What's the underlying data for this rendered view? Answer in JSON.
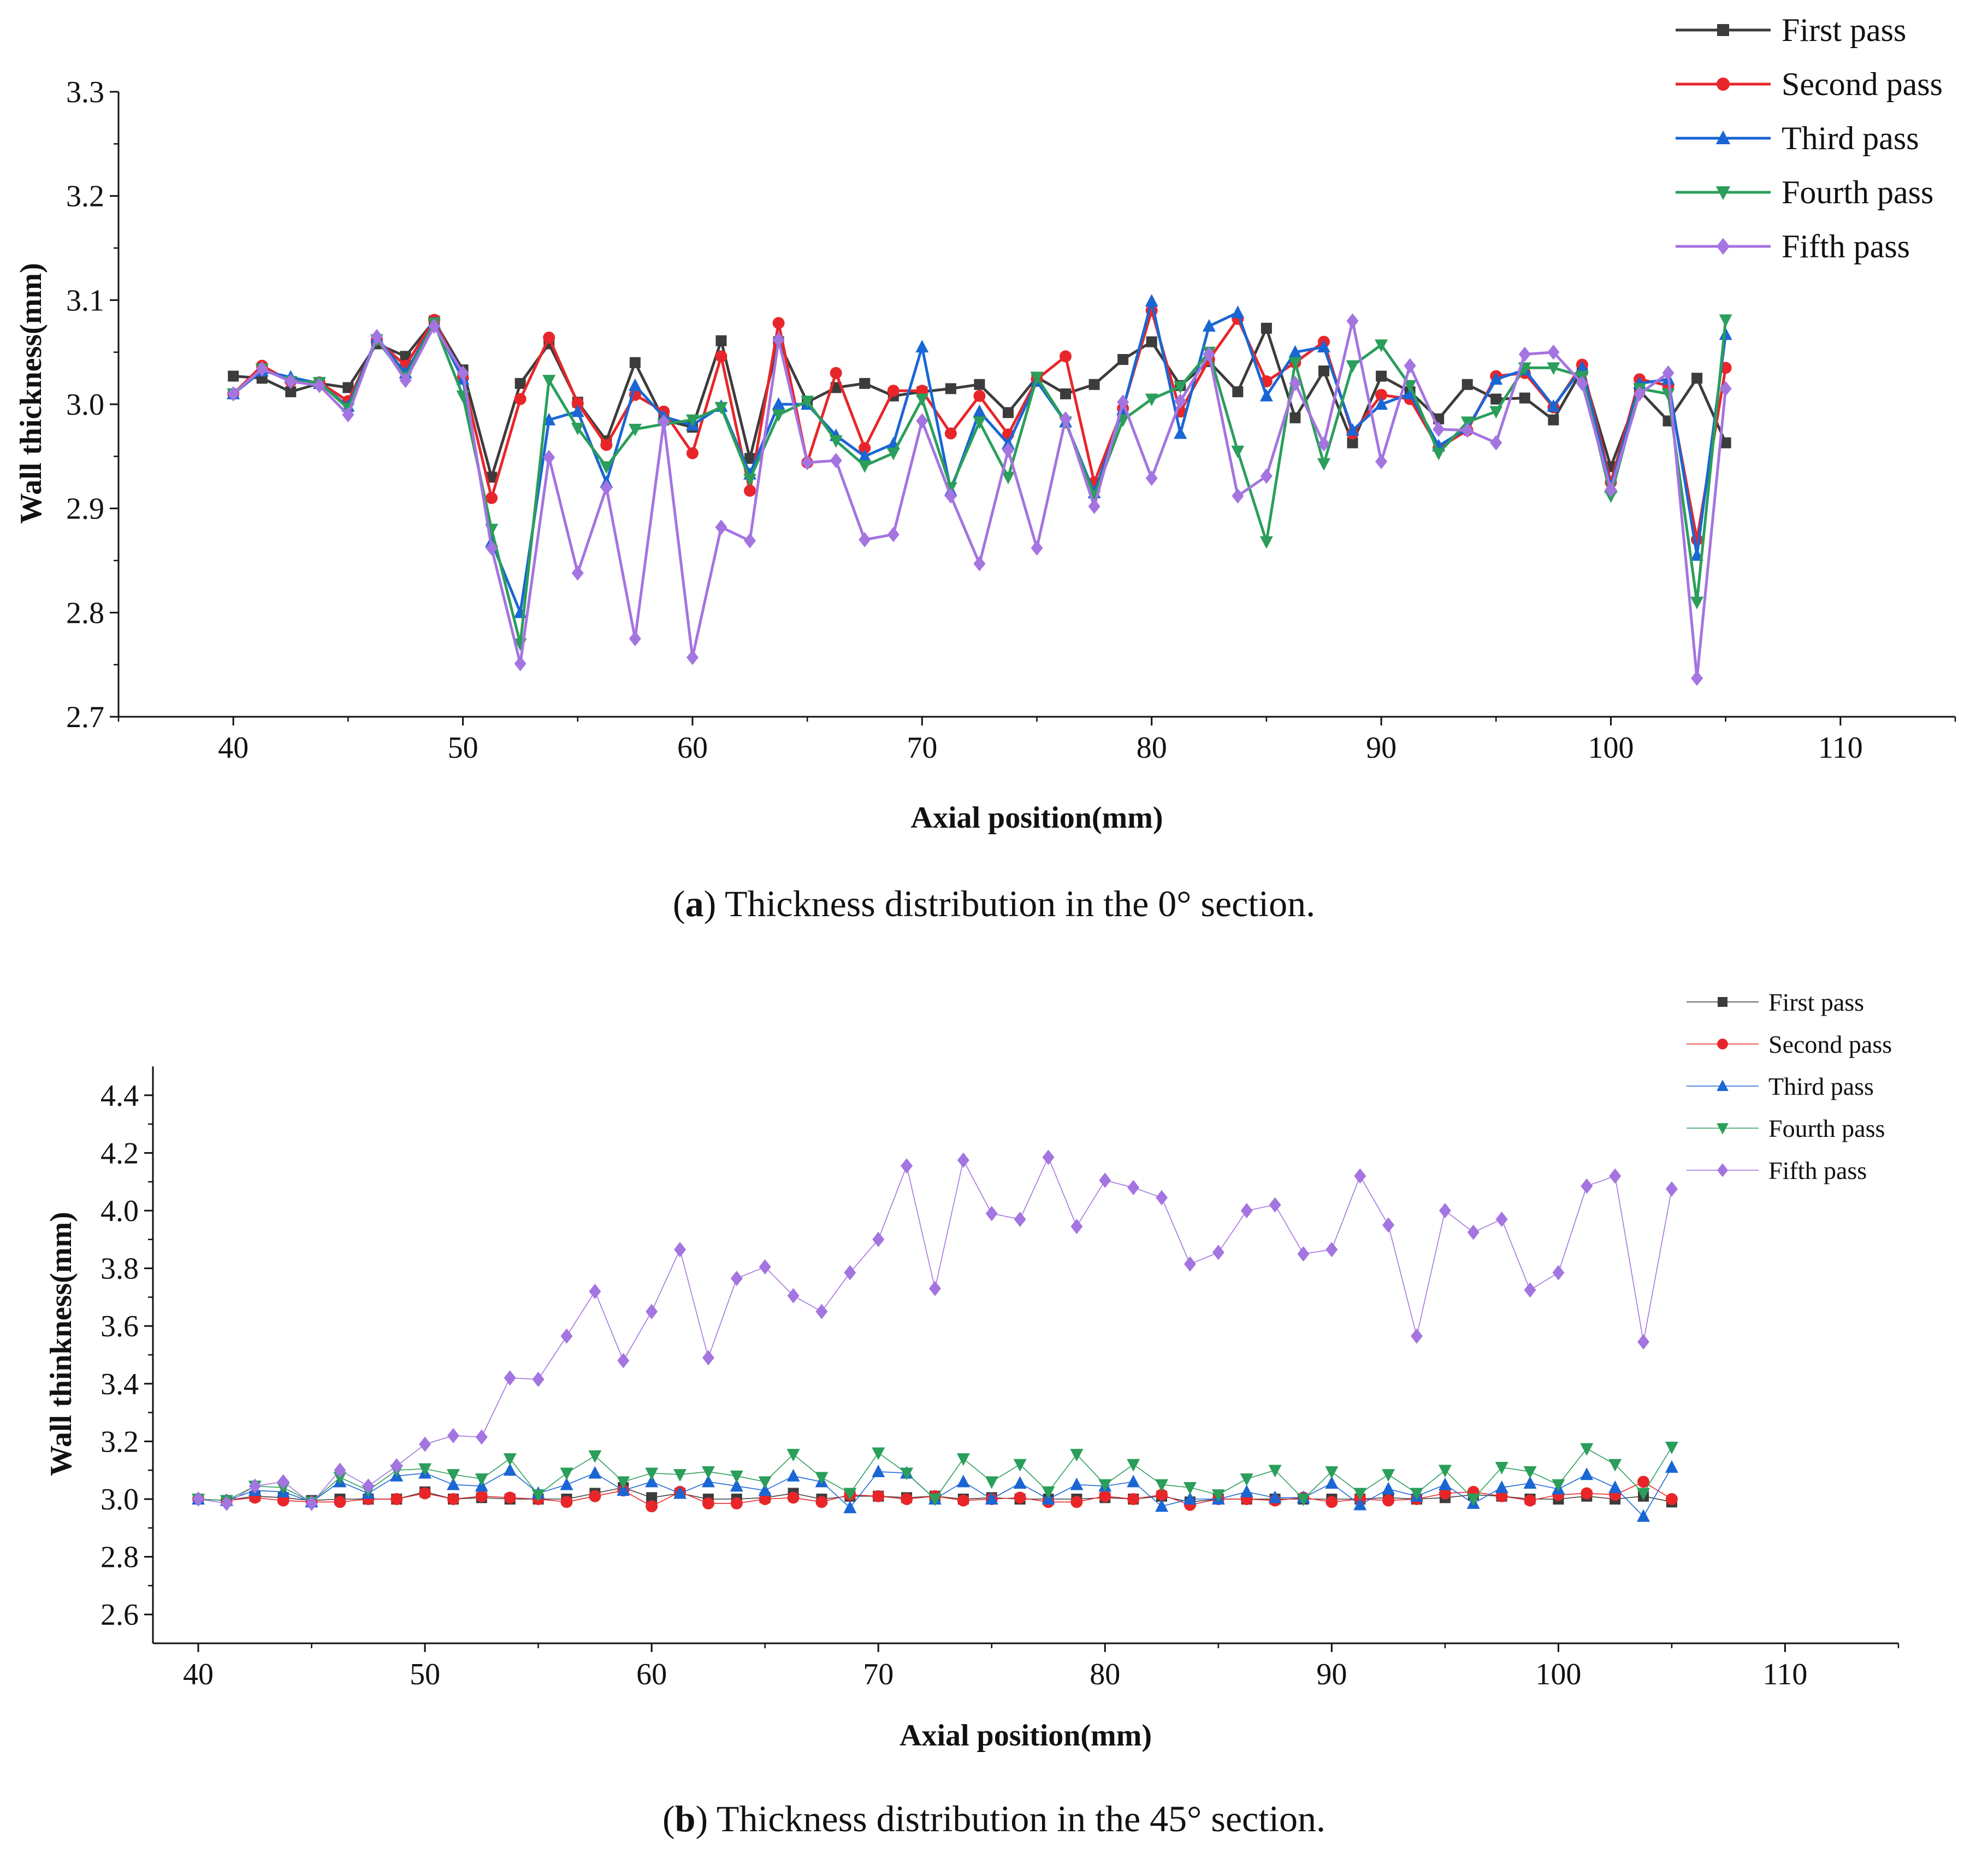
{
  "captions": {
    "a_letter": "a",
    "a_text": " Thickness distribution in the 0° section.",
    "b_letter": "b",
    "b_text": " Thickness distribution in the 45° section."
  },
  "colors": {
    "First pass": "#3c3c3c",
    "Second pass": "#e8262a",
    "Third pass": "#1a66d4",
    "Fourth pass": "#2a9e5a",
    "Fifth pass": "#a474e0"
  },
  "chart_data": [
    {
      "type": "line",
      "id": "a",
      "xlabel": "Axial position(mm)",
      "ylabel": "Wall thickness(mm)",
      "xlim": [
        35,
        115
      ],
      "ylim": [
        2.7,
        3.3
      ],
      "xticks": [
        40,
        50,
        60,
        70,
        80,
        90,
        100,
        110
      ],
      "xtick_labels": [
        "40",
        "50",
        "60",
        "70",
        "80",
        "90",
        "100",
        "110"
      ],
      "yticks": [
        2.7,
        2.8,
        2.9,
        3.0,
        3.1,
        3.2,
        3.3
      ],
      "ytick_labels": [
        "2.7",
        "2.8",
        "2.9",
        "3.0",
        "3.1",
        "3.2",
        "3.3"
      ],
      "legend_position": "top-right",
      "x": [
        40,
        41.25,
        42.5,
        43.75,
        45,
        46.25,
        47.5,
        48.75,
        50,
        51.25,
        52.5,
        53.75,
        55,
        56.25,
        57.5,
        58.75,
        60,
        61.25,
        62.5,
        63.75,
        65,
        66.25,
        67.5,
        68.75,
        70,
        71.25,
        72.5,
        73.75,
        75,
        76.25,
        77.5,
        78.75,
        80,
        81.25,
        82.5,
        83.75,
        85,
        86.25,
        87.5,
        88.75,
        90,
        91.25,
        92.5,
        93.75,
        95,
        96.25,
        97.5,
        98.75,
        100,
        101.25,
        102.5,
        103.75,
        105
      ],
      "series": [
        {
          "name": "First pass",
          "marker": "square",
          "values": [
            3.027,
            3.025,
            3.012,
            3.02,
            3.016,
            3.058,
            3.046,
            3.08,
            3.033,
            2.93,
            3.02,
            3.058,
            3.002,
            2.965,
            3.04,
            2.985,
            2.978,
            3.061,
            2.948,
            3.06,
            3.002,
            3.016,
            3.02,
            3.008,
            3.012,
            3.015,
            3.019,
            2.992,
            3.026,
            3.01,
            3.019,
            3.043,
            3.06,
            3.018,
            3.041,
            3.012,
            3.073,
            2.987,
            3.032,
            2.963,
            3.027,
            3.012,
            2.986,
            3.019,
            3.005,
            3.006,
            2.985,
            3.033,
            2.94,
            3.013,
            2.984,
            3.025,
            2.963
          ]
        },
        {
          "name": "Second pass",
          "marker": "circle",
          "values": [
            3.01,
            3.037,
            3.022,
            3.021,
            3.003,
            3.062,
            3.037,
            3.081,
            3.025,
            2.91,
            3.005,
            3.064,
            3.001,
            2.961,
            3.009,
            2.993,
            2.953,
            3.046,
            2.917,
            3.078,
            2.944,
            3.03,
            2.958,
            3.013,
            3.013,
            2.972,
            3.008,
            2.971,
            3.024,
            3.046,
            2.925,
            2.996,
            3.09,
            2.993,
            3.043,
            3.082,
            3.022,
            3.04,
            3.06,
            2.972,
            3.009,
            3.005,
            2.958,
            2.975,
            3.027,
            3.03,
            2.997,
            3.038,
            2.925,
            3.024,
            3.018,
            2.87,
            3.035
          ]
        },
        {
          "name": "Third pass",
          "marker": "triangle-up",
          "values": [
            3.01,
            3.032,
            3.026,
            3.02,
            2.998,
            3.064,
            3.03,
            3.078,
            3.024,
            2.868,
            2.8,
            2.985,
            2.993,
            2.925,
            3.018,
            2.988,
            2.98,
            2.998,
            2.933,
            3.0,
            3.0,
            2.97,
            2.95,
            2.962,
            3.055,
            2.917,
            2.993,
            2.962,
            3.022,
            2.983,
            2.915,
            2.995,
            3.099,
            2.972,
            3.075,
            3.088,
            3.008,
            3.05,
            3.055,
            2.975,
            3.0,
            3.01,
            2.96,
            2.977,
            3.024,
            3.033,
            2.998,
            3.035,
            2.92,
            3.02,
            3.024,
            2.855,
            3.067
          ]
        },
        {
          "name": "Fourth pass",
          "marker": "triangle-down",
          "values": [
            3.01,
            3.034,
            3.022,
            3.021,
            2.996,
            3.062,
            3.026,
            3.078,
            3.008,
            2.88,
            2.77,
            3.023,
            2.977,
            2.94,
            2.976,
            2.981,
            2.985,
            2.997,
            2.928,
            2.99,
            3.003,
            2.965,
            2.941,
            2.953,
            3.005,
            2.92,
            2.983,
            2.93,
            3.026,
            2.983,
            2.912,
            2.985,
            3.005,
            3.017,
            3.05,
            2.955,
            2.868,
            3.04,
            2.943,
            3.037,
            3.057,
            3.018,
            2.953,
            2.983,
            2.993,
            3.035,
            3.035,
            3.027,
            2.912,
            3.015,
            3.01,
            2.81,
            3.081
          ]
        },
        {
          "name": "Fifth pass",
          "marker": "diamond",
          "values": [
            3.01,
            3.034,
            3.022,
            3.018,
            2.99,
            3.065,
            3.023,
            3.075,
            3.03,
            2.862,
            2.751,
            2.949,
            2.838,
            2.92,
            2.775,
            2.983,
            2.757,
            2.882,
            2.869,
            3.062,
            2.944,
            2.946,
            2.87,
            2.875,
            2.984,
            2.912,
            2.847,
            2.956,
            2.862,
            2.986,
            2.902,
            3.002,
            2.929,
            3.003,
            3.048,
            2.912,
            2.931,
            3.02,
            2.962,
            3.08,
            2.945,
            3.037,
            2.976,
            2.975,
            2.963,
            3.048,
            3.05,
            3.02,
            2.918,
            3.01,
            3.03,
            2.737,
            3.015
          ]
        }
      ]
    },
    {
      "type": "line",
      "id": "b",
      "xlabel": "Axial position(mm)",
      "ylabel": "Wall thinkness(mm)",
      "xlim": [
        38,
        115
      ],
      "ylim": [
        2.5,
        4.5
      ],
      "xticks": [
        40,
        50,
        60,
        70,
        80,
        90,
        100,
        110
      ],
      "xtick_labels": [
        "40",
        "50",
        "60",
        "70",
        "80",
        "90",
        "100",
        "110"
      ],
      "yticks": [
        2.6,
        2.8,
        3.0,
        3.2,
        3.4,
        3.6,
        3.8,
        4.0,
        4.2,
        4.4
      ],
      "ytick_labels": [
        "2.6",
        "2.8",
        "3.0",
        "3.2",
        "3.4",
        "3.6",
        "3.8",
        "4.0",
        "4.2",
        "4.4"
      ],
      "legend_position": "top-right",
      "x": [
        40,
        41.25,
        42.5,
        43.75,
        45,
        46.25,
        47.5,
        48.75,
        50,
        51.25,
        52.5,
        53.75,
        55,
        56.25,
        57.5,
        58.75,
        60,
        61.25,
        62.5,
        63.75,
        65,
        66.25,
        67.5,
        68.75,
        70,
        71.25,
        72.5,
        73.75,
        75,
        76.25,
        77.5,
        78.75,
        80,
        81.25,
        82.5,
        83.75,
        85,
        86.25,
        87.5,
        88.75,
        90,
        91.25,
        92.5,
        93.75,
        95,
        96.25,
        97.5,
        98.75,
        100,
        101.25,
        102.5,
        103.75,
        105
      ],
      "series": [
        {
          "name": "First pass",
          "marker": "square",
          "values": [
            3.0,
            2.995,
            3.01,
            3.005,
            2.995,
            3.0,
            3.0,
            3.0,
            3.025,
            3.0,
            3.005,
            3.0,
            3.0,
            3.0,
            3.02,
            3.04,
            3.005,
            3.02,
            3.0,
            3.0,
            3.005,
            3.02,
            3.0,
            3.01,
            3.01,
            3.005,
            3.01,
            3.0,
            3.005,
            3.0,
            3.0,
            3.0,
            3.005,
            3.0,
            3.01,
            2.99,
            3.0,
            3.0,
            3.0,
            3.0,
            3.0,
            3.0,
            3.005,
            3.0,
            3.005,
            3.015,
            3.01,
            3.0,
            3.0,
            3.01,
            3.0,
            3.01,
            2.99
          ]
        },
        {
          "name": "Second pass",
          "marker": "circle",
          "values": [
            3.0,
            2.995,
            3.005,
            2.995,
            2.99,
            2.99,
            3.0,
            3.0,
            3.02,
            3.0,
            3.01,
            3.005,
            3.0,
            2.99,
            3.01,
            3.03,
            2.975,
            3.025,
            2.985,
            2.985,
            3.0,
            3.005,
            2.99,
            3.015,
            3.01,
            3.0,
            3.01,
            2.995,
            3.0,
            3.005,
            2.99,
            2.99,
            3.01,
            3.0,
            3.015,
            2.98,
            3.0,
            3.0,
            2.995,
            3.005,
            2.99,
            3.0,
            2.995,
            3.0,
            3.02,
            3.025,
            3.01,
            2.995,
            3.015,
            3.02,
            3.015,
            3.06,
            3.0
          ]
        },
        {
          "name": "Third pass",
          "marker": "triangle-up",
          "values": [
            3.0,
            2.995,
            3.03,
            3.025,
            2.99,
            3.06,
            3.02,
            3.08,
            3.09,
            3.05,
            3.045,
            3.1,
            3.02,
            3.05,
            3.09,
            3.03,
            3.06,
            3.02,
            3.06,
            3.045,
            3.03,
            3.08,
            3.06,
            2.97,
            3.095,
            3.09,
            3.0,
            3.06,
            3.0,
            3.055,
            3.0,
            3.05,
            3.045,
            3.06,
            2.975,
            3.0,
            3.0,
            3.025,
            3.005,
            3.005,
            3.055,
            2.98,
            3.035,
            3.01,
            3.05,
            2.985,
            3.04,
            3.055,
            3.035,
            3.085,
            3.04,
            2.94,
            3.11
          ]
        },
        {
          "name": "Fourth pass",
          "marker": "triangle-down",
          "values": [
            3.0,
            2.995,
            3.045,
            3.04,
            2.99,
            3.075,
            3.03,
            3.1,
            3.105,
            3.085,
            3.07,
            3.14,
            3.015,
            3.09,
            3.15,
            3.06,
            3.09,
            3.085,
            3.095,
            3.08,
            3.06,
            3.155,
            3.075,
            3.02,
            3.16,
            3.09,
            3.0,
            3.14,
            3.06,
            3.12,
            3.025,
            3.155,
            3.05,
            3.12,
            3.05,
            3.04,
            3.015,
            3.07,
            3.1,
            3.0,
            3.095,
            3.02,
            3.085,
            3.02,
            3.1,
            3.0,
            3.11,
            3.095,
            3.05,
            3.175,
            3.12,
            3.02,
            3.18
          ]
        },
        {
          "name": "Fifth pass",
          "marker": "diamond",
          "values": [
            3.0,
            2.985,
            3.045,
            3.06,
            2.985,
            3.1,
            3.045,
            3.115,
            3.19,
            3.22,
            3.215,
            3.42,
            3.415,
            3.565,
            3.72,
            3.48,
            3.65,
            3.865,
            3.49,
            3.765,
            3.805,
            3.705,
            3.65,
            3.785,
            3.9,
            4.155,
            3.73,
            4.175,
            3.99,
            3.97,
            4.185,
            3.945,
            4.105,
            4.08,
            4.045,
            3.815,
            3.855,
            4.0,
            4.02,
            3.85,
            3.865,
            4.12,
            3.95,
            3.565,
            4.0,
            3.925,
            3.97,
            3.725,
            3.785,
            4.085,
            4.12,
            3.545,
            4.075
          ]
        }
      ]
    }
  ]
}
